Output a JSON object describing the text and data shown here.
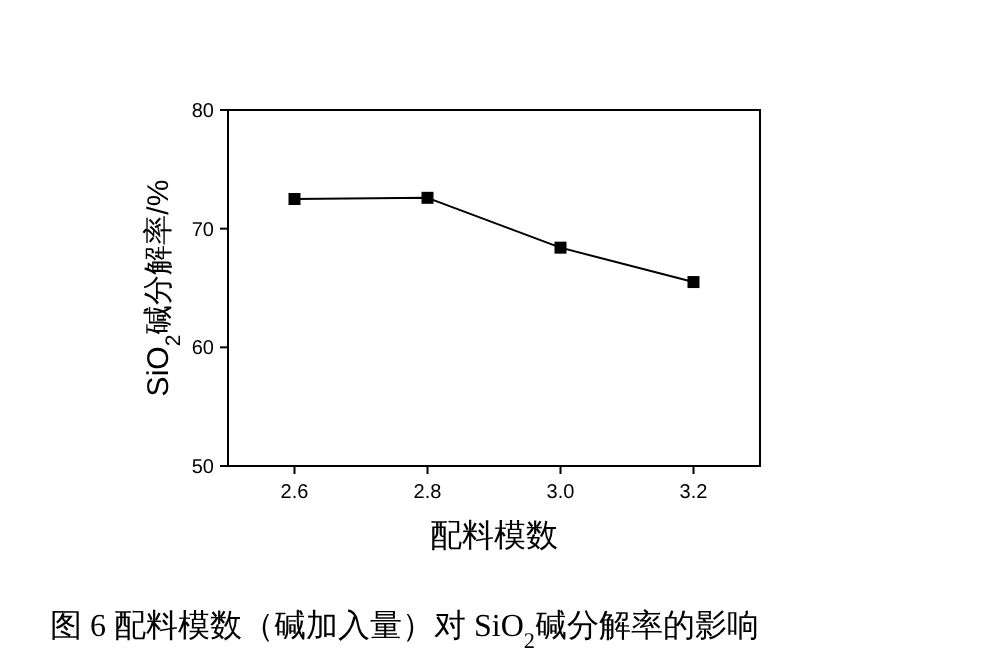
{
  "chart_data": {
    "type": "line",
    "x": [
      2.6,
      2.8,
      3.0,
      3.2
    ],
    "values": [
      72.5,
      72.6,
      68.4,
      65.5
    ],
    "color": "#000000",
    "marker": "square",
    "line_style": "solid",
    "xlim": [
      2.5,
      3.3
    ],
    "xticks": [
      {
        "value": 2.6,
        "label": "2.6"
      },
      {
        "value": 2.8,
        "label": "2.8"
      },
      {
        "value": 3.0,
        "label": "3.0"
      },
      {
        "value": 3.2,
        "label": "3.2"
      }
    ],
    "ylim": [
      50,
      80
    ],
    "yticks": [
      50,
      60,
      70,
      80
    ],
    "xlabel": "配料模数",
    "ylabel": "SiO$_{2}$碱分解率/%",
    "annotations": [
      "图 6 配料模数（碱加入量）对 SiO$_{2}$碱分解率的影响"
    ]
  }
}
